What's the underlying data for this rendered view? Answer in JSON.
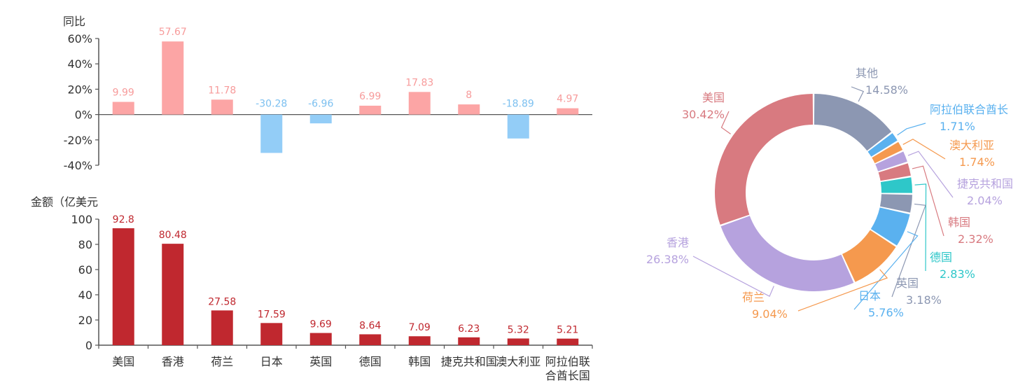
{
  "chart_data": [
    {
      "type": "bar",
      "ylabel": "同比",
      "ylim": [
        -40,
        60
      ],
      "y_ticks": [
        "60%",
        "40%",
        "20%",
        "0%",
        "-20%",
        "-40%"
      ],
      "categories": [
        "美国",
        "香港",
        "荷兰",
        "日本",
        "英国",
        "德国",
        "韩国",
        "捷克共和国",
        "澳大利亚",
        "阿拉伯联合酋长国"
      ],
      "values": [
        9.99,
        57.67,
        11.78,
        -30.28,
        -6.96,
        6.99,
        17.83,
        8,
        -18.89,
        4.97
      ],
      "value_labels": [
        "9.99",
        "57.67",
        "11.78",
        "-30.28",
        "-6.96",
        "6.99",
        "17.83",
        "8",
        "-18.89",
        "4.97"
      ],
      "colors": {
        "positive": "#fca5a5",
        "negative": "#93cdf7",
        "positive_label": "#f79b9b",
        "negative_label": "#7cc0f0"
      }
    },
    {
      "type": "bar",
      "ylabel": "金额（亿美元",
      "ylim": [
        0,
        100
      ],
      "y_ticks": [
        "100",
        "80",
        "60",
        "40",
        "20",
        "0"
      ],
      "categories": [
        "美国",
        "香港",
        "荷兰",
        "日本",
        "英国",
        "德国",
        "韩国",
        "捷克共和国",
        "澳大利亚",
        "阿拉伯联合酋长国"
      ],
      "x_tick_lines": [
        [
          "美国"
        ],
        [
          "香港"
        ],
        [
          "荷兰"
        ],
        [
          "日本"
        ],
        [
          "英国"
        ],
        [
          "德国"
        ],
        [
          "韩国"
        ],
        [
          "捷克共和国"
        ],
        [
          "澳大利亚"
        ],
        [
          "阿拉伯联",
          "合酋长国"
        ]
      ],
      "values": [
        92.8,
        80.48,
        27.58,
        17.59,
        9.69,
        8.64,
        7.09,
        6.23,
        5.32,
        5.21
      ],
      "value_labels": [
        "92.8",
        "80.48",
        "27.58",
        "17.59",
        "9.69",
        "8.64",
        "7.09",
        "6.23",
        "5.32",
        "5.21"
      ],
      "colors": {
        "bar": "#c0282f",
        "label": "#c0282f"
      }
    },
    {
      "type": "pie",
      "donut": true,
      "slices": [
        {
          "name": "其他",
          "value": 14.58,
          "label": "14.58%",
          "color": "#8c97b2"
        },
        {
          "name": "阿拉伯联合酋长",
          "value": 1.71,
          "label": "1.71%",
          "color": "#5ab1ef"
        },
        {
          "name": "澳大利亚",
          "value": 1.74,
          "label": "1.74%",
          "color": "#f5994e"
        },
        {
          "name": "捷克共和国",
          "value": 2.04,
          "label": "2.04%",
          "color": "#b6a2de"
        },
        {
          "name": "韩国",
          "value": 2.32,
          "label": "2.32%",
          "color": "#d87a80"
        },
        {
          "name": "德国",
          "value": 2.83,
          "label": "2.83%",
          "color": "#2ec7c9"
        },
        {
          "name": "英国",
          "value": 3.18,
          "label": "3.18%",
          "color": "#8c97b2"
        },
        {
          "name": "日本",
          "value": 5.76,
          "label": "5.76%",
          "color": "#5ab1ef"
        },
        {
          "name": "荷兰",
          "value": 9.04,
          "label": "9.04%",
          "color": "#f5994e"
        },
        {
          "name": "香港",
          "value": 26.38,
          "label": "26.38%",
          "color": "#b6a2de"
        },
        {
          "name": "美国",
          "value": 30.42,
          "label": "30.42%",
          "color": "#d87a80"
        }
      ]
    }
  ]
}
